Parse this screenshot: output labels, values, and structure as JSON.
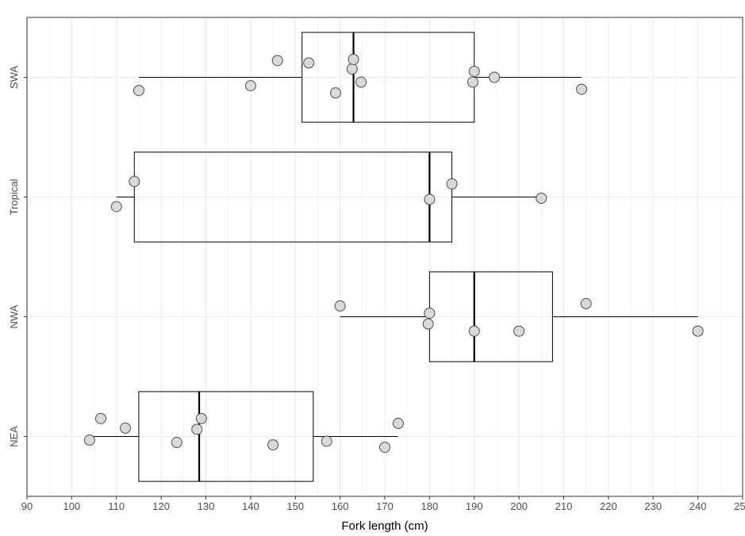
{
  "chart_data": {
    "type": "boxplot",
    "orientation": "horizontal",
    "xlabel": "Fork length (cm)",
    "ylabel": "",
    "xlim": [
      90,
      250
    ],
    "xticks": [
      90,
      100,
      110,
      120,
      130,
      140,
      150,
      160,
      170,
      180,
      190,
      200,
      210,
      220,
      230,
      240,
      250
    ],
    "grid": true,
    "categories": [
      "NEA",
      "NWA",
      "Tropical",
      "SWA"
    ],
    "boxes": [
      {
        "category": "NEA",
        "whisker_low": 104,
        "q1": 115,
        "median": 128.5,
        "q3": 154,
        "whisker_high": 173
      },
      {
        "category": "NWA",
        "whisker_low": 160,
        "q1": 180,
        "median": 190,
        "q3": 207.5,
        "whisker_high": 240
      },
      {
        "category": "Tropical",
        "whisker_low": 110,
        "q1": 114,
        "median": 180,
        "q3": 185,
        "whisker_high": 205
      },
      {
        "category": "SWA",
        "whisker_low": 115,
        "q1": 151.5,
        "median": 163,
        "q3": 190,
        "whisker_high": 214
      }
    ],
    "points": [
      {
        "category": "SWA",
        "x": 115,
        "jitter": -0.11
      },
      {
        "category": "SWA",
        "x": 140,
        "jitter": -0.07
      },
      {
        "category": "SWA",
        "x": 146,
        "jitter": 0.14
      },
      {
        "category": "SWA",
        "x": 153,
        "jitter": 0.12
      },
      {
        "category": "SWA",
        "x": 159,
        "jitter": -0.13
      },
      {
        "category": "SWA",
        "x": 162.7,
        "jitter": 0.07
      },
      {
        "category": "SWA",
        "x": 163,
        "jitter": 0.15
      },
      {
        "category": "SWA",
        "x": 164.7,
        "jitter": -0.04
      },
      {
        "category": "SWA",
        "x": 189.7,
        "jitter": -0.04
      },
      {
        "category": "SWA",
        "x": 190,
        "jitter": 0.05
      },
      {
        "category": "SWA",
        "x": 194.5,
        "jitter": 0.0
      },
      {
        "category": "SWA",
        "x": 214,
        "jitter": -0.1
      },
      {
        "category": "Tropical",
        "x": 110,
        "jitter": -0.08
      },
      {
        "category": "Tropical",
        "x": 114,
        "jitter": 0.13
      },
      {
        "category": "Tropical",
        "x": 180,
        "jitter": -0.02
      },
      {
        "category": "Tropical",
        "x": 185,
        "jitter": 0.11
      },
      {
        "category": "Tropical",
        "x": 205,
        "jitter": -0.01
      },
      {
        "category": "NWA",
        "x": 160,
        "jitter": 0.09
      },
      {
        "category": "NWA",
        "x": 179.7,
        "jitter": -0.06
      },
      {
        "category": "NWA",
        "x": 180,
        "jitter": 0.03
      },
      {
        "category": "NWA",
        "x": 190,
        "jitter": -0.12
      },
      {
        "category": "NWA",
        "x": 200,
        "jitter": -0.12
      },
      {
        "category": "NWA",
        "x": 215,
        "jitter": 0.11
      },
      {
        "category": "NWA",
        "x": 240,
        "jitter": -0.12
      },
      {
        "category": "NEA",
        "x": 104,
        "jitter": -0.03
      },
      {
        "category": "NEA",
        "x": 106.5,
        "jitter": 0.15
      },
      {
        "category": "NEA",
        "x": 112,
        "jitter": 0.07
      },
      {
        "category": "NEA",
        "x": 123.5,
        "jitter": -0.05
      },
      {
        "category": "NEA",
        "x": 128,
        "jitter": 0.06
      },
      {
        "category": "NEA",
        "x": 129,
        "jitter": 0.15
      },
      {
        "category": "NEA",
        "x": 145,
        "jitter": -0.07
      },
      {
        "category": "NEA",
        "x": 157,
        "jitter": -0.04
      },
      {
        "category": "NEA",
        "x": 170,
        "jitter": -0.09
      },
      {
        "category": "NEA",
        "x": 173,
        "jitter": 0.11
      }
    ],
    "colors": {
      "background": "#ffffff",
      "grid": "#ebebeb",
      "box": "#000000",
      "point_fill": "#d9d9d9",
      "point_stroke": "#4d4d4d",
      "axis_text": "#4d4d4d"
    }
  }
}
